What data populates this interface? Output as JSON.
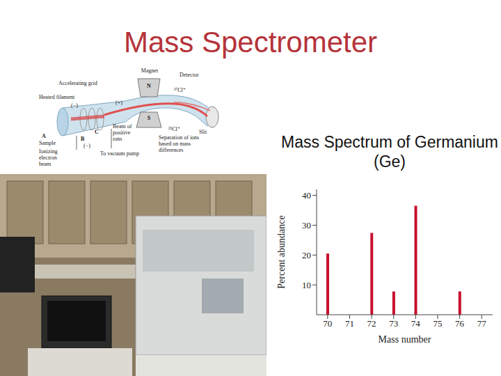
{
  "title": "Mass Spectrometer",
  "diagram": {
    "magnet": "Magnet",
    "north": "N",
    "south": "S",
    "detector": "Detector",
    "ion_heavy": "³⁷Cl⁺",
    "ion_light": "³⁵Cl⁺",
    "accelerating_grid": "Accelerating grid",
    "heated_filament": "Heated filament",
    "minus": "(−)",
    "plus": "(+)",
    "point_a": "A",
    "sample": "Sample",
    "point_b": "B",
    "point_c": "C",
    "beam": "Beam of positive ions",
    "vacuum": "To vacuum pump",
    "electron_beam": "Ionizing electron beam",
    "separation": "Separation of ions based on mass differences",
    "slit": "Slit"
  },
  "chart_caption": "Mass Spectrum of Germanium (Ge)",
  "chart_data": {
    "type": "bar",
    "x": [
      70,
      72,
      73,
      74,
      76
    ],
    "values": [
      20.5,
      27.4,
      7.8,
      36.5,
      7.8
    ],
    "color": "#c8102e",
    "xlim": [
      69.5,
      77.5
    ],
    "xticks": [
      70,
      71,
      72,
      73,
      74,
      75,
      76,
      77
    ],
    "ylim": [
      0,
      42
    ],
    "yticks": [
      10,
      20,
      30,
      40
    ],
    "xlabel": "Mass number",
    "ylabel": "Percent abundance"
  }
}
